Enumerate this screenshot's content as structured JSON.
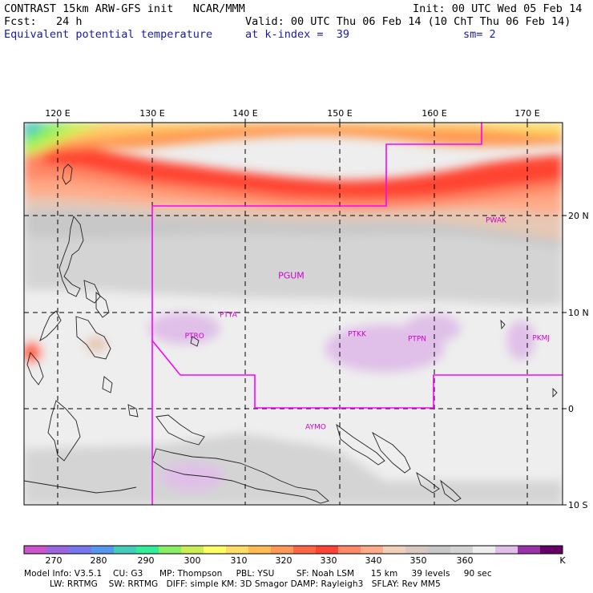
{
  "header": {
    "title": "CONTRAST 15km ARW-GFS init   NCAR/MMM",
    "init": "Init: 00 UTC Wed 05 Feb 14",
    "fcst": "Fcst:   24 h",
    "valid": "Valid: 00 UTC Thu 06 Feb 14 (10 ChT Thu 06 Feb 14)",
    "field": "Equivalent potential temperature",
    "level": "at k-index =  39",
    "smoothing": "sm= 2"
  },
  "map": {
    "lon_labels": [
      "120 E",
      "130 E",
      "140 E",
      "150 E",
      "160 E",
      "170 E"
    ],
    "lat_labels": [
      "20 N",
      "10 N",
      "0",
      "10 S"
    ],
    "stations": [
      {
        "id": "PGUM",
        "lon": 144.8,
        "lat": 13.5
      },
      {
        "id": "PTYA",
        "lon": 138.1,
        "lat": 9.5
      },
      {
        "id": "PTRO",
        "lon": 134.5,
        "lat": 7.3
      },
      {
        "id": "PTKK",
        "lon": 151.8,
        "lat": 7.5
      },
      {
        "id": "PTPN",
        "lon": 158.2,
        "lat": 7.0
      },
      {
        "id": "PKMJ",
        "lon": 171.4,
        "lat": 7.1
      },
      {
        "id": "PWAK",
        "lon": 166.6,
        "lat": 19.3
      },
      {
        "id": "AYMO",
        "lon": 147.4,
        "lat": -2.1
      }
    ],
    "colors": {
      "boundary": "#ff00ff",
      "station": "#cc00cc"
    }
  },
  "colorbar": {
    "labels": [
      "270",
      "280",
      "290",
      "300",
      "310",
      "320",
      "330",
      "340",
      "350",
      "360",
      "K"
    ],
    "colors": [
      "#cc55cc",
      "#9966dd",
      "#7777ee",
      "#5599ee",
      "#44ccbb",
      "#33ee99",
      "#88ee66",
      "#ccee55",
      "#ffff66",
      "#ffdd66",
      "#ffbb55",
      "#ff9955",
      "#ff6644",
      "#ff4433",
      "#ff8866",
      "#ffaa88",
      "#f0d0b8",
      "#d8c8c0",
      "#c8c8c8",
      "#d4d4d4",
      "#eeeeee",
      "#e0c0e8",
      "#9933aa",
      "#660066"
    ]
  },
  "footer": {
    "line1": "Model Info: V3.5.1    CU: G3      MP: Thompson     PBL: YSU        SF: Noah LSM      15 km     39 levels     90 sec",
    "line2": "LW: RRTMG    SW: RRTMG   DIFF: simple KM: 3D Smagor DAMP: Rayleigh3   SFLAY: Rev MM5"
  }
}
